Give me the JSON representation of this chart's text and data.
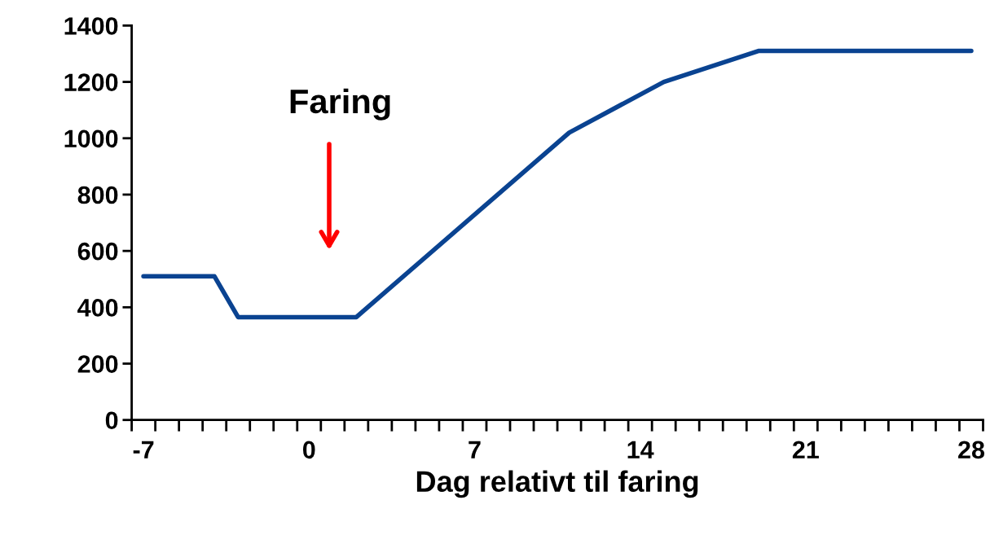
{
  "chart_data": {
    "type": "line",
    "xlabel": "Dag relativt til faring",
    "x": [
      -7,
      -4,
      -3,
      2,
      11,
      15,
      19,
      28
    ],
    "series": [
      {
        "color": "#0a4391",
        "values": [
          510,
          510,
          365,
          365,
          1020,
          1200,
          1310,
          1310
        ]
      }
    ],
    "xlim": [
      -7.5,
      28.5
    ],
    "xticks": [
      -7,
      0,
      7,
      14,
      21,
      28
    ],
    "ylim": [
      0,
      1400
    ],
    "yticks": [
      0,
      200,
      400,
      600,
      800,
      1000,
      1200,
      1400
    ],
    "grid": false,
    "legend": false,
    "marker": "none",
    "line_style": "solid",
    "annotations": [
      "Faring"
    ]
  }
}
